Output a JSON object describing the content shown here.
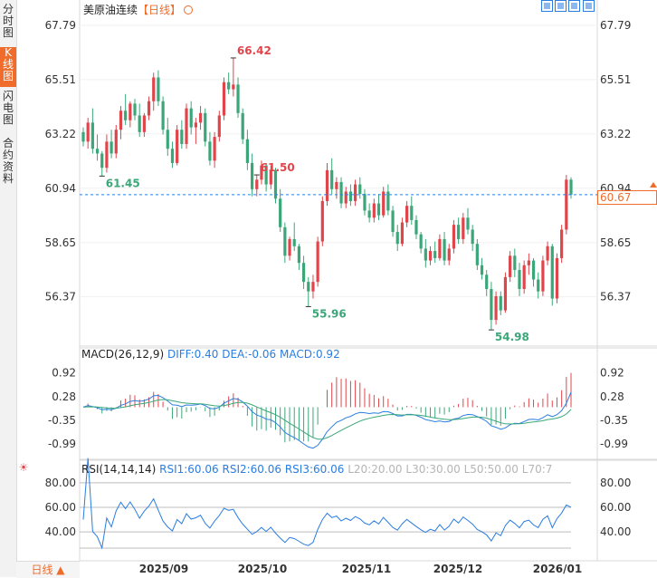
{
  "sidebar": {
    "tabs": [
      {
        "label": "分时图",
        "active": false
      },
      {
        "label": "K线图",
        "active": true
      },
      {
        "label": "闪电图",
        "active": false
      },
      {
        "label": "合约资料",
        "active": false
      }
    ]
  },
  "header": {
    "instrument": "美原油连续",
    "period_label": "【日线】"
  },
  "toolbar": {
    "buttons": [
      "zoom-in-icon",
      "zoom-out-icon",
      "move-left-icon",
      "move-right-icon"
    ]
  },
  "current_price": {
    "label": "60.67",
    "value": 60.67
  },
  "macd_legend": {
    "name": "MACD(26,12,9)",
    "dif": "DIFF:0.40",
    "dea": "DEA:-0.06",
    "macd": "MACD:0.92"
  },
  "rsi_legend": {
    "name": "RSI(14,14,14)",
    "rsi1": "RSI1:60.06",
    "rsi2": "RSI2:60.06",
    "rsi3": "RSI3:60.06",
    "l20": "L20:20.00",
    "l30": "L30:30.00",
    "l50": "L50:50.00",
    "l70": "L70:7"
  },
  "period_selector": {
    "label": "日线",
    "arrow": "▲"
  },
  "colors": {
    "up": "#e0454b",
    "down": "#3ba779",
    "dif": "#2a7de1",
    "dea": "#3ba779",
    "accent": "#ef6c2a"
  },
  "chart_data": {
    "type": "candlestick",
    "price_axis": {
      "ticks": [
        "67.79",
        "65.51",
        "63.22",
        "60.94",
        "58.65",
        "56.37"
      ],
      "ylim": [
        54.3,
        68.4
      ]
    },
    "x_axis": {
      "labels": [
        "2025/09",
        "2025/10",
        "2025/11",
        "2025/12",
        "2026/01"
      ]
    },
    "annotations": [
      {
        "text": "66.42",
        "value": 66.42,
        "type": "high"
      },
      {
        "text": "61.45",
        "value": 61.45,
        "type": "low"
      },
      {
        "text": "55.96",
        "value": 55.96,
        "type": "low"
      },
      {
        "text": "54.98",
        "value": 54.98,
        "type": "low"
      },
      {
        "text": "61.50",
        "value": 61.5,
        "type": "high"
      }
    ],
    "ohlc": [
      [
        63.3,
        63.5,
        62.7,
        62.9
      ],
      [
        62.9,
        63.9,
        62.6,
        63.7
      ],
      [
        63.7,
        64.3,
        62.4,
        62.6
      ],
      [
        62.6,
        63.2,
        62.1,
        62.4
      ],
      [
        62.4,
        62.5,
        61.45,
        61.8
      ],
      [
        61.8,
        63.2,
        61.6,
        62.9
      ],
      [
        62.9,
        63.4,
        62.2,
        62.4
      ],
      [
        62.4,
        63.6,
        62.2,
        63.4
      ],
      [
        63.4,
        64.4,
        63.0,
        64.2
      ],
      [
        64.2,
        64.9,
        63.6,
        63.8
      ],
      [
        63.8,
        64.6,
        63.5,
        64.5
      ],
      [
        64.5,
        64.7,
        63.8,
        64.0
      ],
      [
        64.0,
        64.5,
        63.1,
        63.3
      ],
      [
        63.3,
        64.1,
        63.1,
        64.0
      ],
      [
        64.0,
        64.8,
        63.8,
        64.6
      ],
      [
        64.6,
        65.8,
        64.2,
        65.6
      ],
      [
        65.6,
        65.9,
        64.4,
        64.6
      ],
      [
        64.6,
        64.8,
        63.2,
        63.4
      ],
      [
        63.4,
        63.9,
        62.3,
        62.6
      ],
      [
        62.6,
        62.9,
        61.8,
        62.0
      ],
      [
        62.0,
        63.6,
        61.9,
        63.4
      ],
      [
        63.4,
        63.8,
        62.6,
        62.8
      ],
      [
        62.8,
        64.5,
        62.6,
        64.3
      ],
      [
        64.3,
        64.6,
        63.2,
        63.5
      ],
      [
        63.5,
        63.9,
        62.8,
        63.7
      ],
      [
        63.7,
        64.4,
        63.4,
        64.1
      ],
      [
        64.1,
        64.3,
        62.7,
        62.9
      ],
      [
        62.9,
        63.3,
        61.9,
        62.1
      ],
      [
        62.1,
        63.3,
        61.8,
        63.1
      ],
      [
        63.1,
        64.2,
        62.9,
        64.0
      ],
      [
        64.0,
        65.6,
        63.8,
        65.4
      ],
      [
        65.4,
        65.8,
        64.9,
        65.1
      ],
      [
        65.1,
        66.42,
        64.8,
        65.3
      ],
      [
        65.3,
        65.6,
        63.9,
        64.1
      ],
      [
        64.1,
        64.3,
        62.8,
        63.0
      ],
      [
        63.0,
        63.4,
        61.7,
        62.0
      ],
      [
        62.0,
        62.4,
        60.6,
        60.9
      ],
      [
        60.9,
        61.5,
        60.6,
        61.3
      ],
      [
        61.3,
        62.1,
        61.1,
        61.9
      ],
      [
        61.9,
        62.0,
        60.8,
        61.1
      ],
      [
        61.1,
        61.9,
        60.9,
        61.7
      ],
      [
        61.7,
        61.8,
        60.3,
        60.5
      ],
      [
        60.5,
        60.9,
        59.1,
        59.3
      ],
      [
        59.3,
        59.5,
        57.8,
        58.1
      ],
      [
        58.1,
        58.9,
        57.9,
        58.8
      ],
      [
        58.8,
        59.5,
        58.3,
        58.5
      ],
      [
        58.5,
        58.6,
        57.5,
        57.8
      ],
      [
        57.8,
        58.1,
        56.7,
        57.0
      ],
      [
        57.0,
        57.2,
        55.96,
        56.6
      ],
      [
        56.6,
        57.3,
        56.3,
        57.0
      ],
      [
        57.0,
        58.9,
        56.8,
        58.7
      ],
      [
        58.7,
        60.6,
        58.5,
        60.4
      ],
      [
        60.4,
        62.0,
        60.2,
        61.7
      ],
      [
        61.7,
        62.2,
        60.7,
        60.9
      ],
      [
        60.9,
        61.4,
        60.5,
        61.2
      ],
      [
        61.2,
        61.4,
        60.1,
        60.3
      ],
      [
        60.3,
        61.0,
        60.1,
        60.8
      ],
      [
        60.8,
        61.1,
        60.2,
        60.4
      ],
      [
        60.4,
        61.3,
        60.2,
        61.1
      ],
      [
        61.1,
        61.4,
        60.5,
        60.7
      ],
      [
        60.7,
        60.9,
        59.8,
        60.0
      ],
      [
        60.0,
        60.3,
        59.5,
        59.7
      ],
      [
        59.7,
        60.5,
        59.5,
        60.3
      ],
      [
        60.3,
        60.7,
        59.6,
        59.8
      ],
      [
        59.8,
        61.0,
        59.7,
        60.8
      ],
      [
        60.8,
        61.1,
        59.8,
        60.0
      ],
      [
        60.0,
        60.2,
        58.9,
        59.1
      ],
      [
        59.1,
        59.4,
        58.3,
        58.6
      ],
      [
        58.6,
        59.7,
        58.5,
        59.5
      ],
      [
        59.5,
        60.4,
        59.3,
        60.2
      ],
      [
        60.2,
        60.6,
        59.4,
        59.6
      ],
      [
        59.6,
        59.8,
        58.8,
        59.0
      ],
      [
        59.0,
        59.1,
        58.2,
        58.4
      ],
      [
        58.4,
        58.8,
        57.6,
        57.9
      ],
      [
        57.9,
        58.5,
        57.7,
        58.3
      ],
      [
        58.3,
        58.7,
        57.8,
        58.0
      ],
      [
        58.0,
        59.0,
        57.9,
        58.8
      ],
      [
        58.8,
        59.1,
        57.7,
        57.9
      ],
      [
        57.9,
        58.6,
        57.7,
        58.4
      ],
      [
        58.4,
        59.6,
        58.2,
        59.4
      ],
      [
        59.4,
        59.7,
        58.6,
        58.8
      ],
      [
        58.8,
        59.9,
        58.6,
        59.7
      ],
      [
        59.7,
        60.1,
        59.0,
        59.2
      ],
      [
        59.2,
        59.4,
        58.3,
        58.6
      ],
      [
        58.6,
        58.8,
        57.5,
        57.7
      ],
      [
        57.7,
        58.0,
        57.1,
        57.3
      ],
      [
        57.3,
        57.5,
        56.4,
        56.7
      ],
      [
        56.7,
        57.0,
        54.98,
        55.4
      ],
      [
        55.4,
        56.6,
        55.2,
        56.4
      ],
      [
        56.4,
        56.6,
        55.6,
        55.8
      ],
      [
        55.8,
        57.4,
        55.7,
        57.2
      ],
      [
        57.2,
        58.3,
        57.0,
        58.1
      ],
      [
        58.1,
        58.4,
        57.2,
        57.5
      ],
      [
        57.5,
        57.8,
        56.4,
        56.7
      ],
      [
        56.7,
        57.9,
        56.5,
        57.7
      ],
      [
        57.7,
        58.2,
        57.3,
        57.9
      ],
      [
        57.9,
        58.0,
        56.8,
        57.1
      ],
      [
        57.1,
        57.4,
        56.3,
        56.6
      ],
      [
        56.6,
        58.1,
        56.4,
        57.9
      ],
      [
        57.9,
        58.7,
        57.7,
        58.5
      ],
      [
        58.5,
        58.6,
        56.0,
        56.3
      ],
      [
        56.3,
        58.2,
        56.1,
        58.0
      ],
      [
        58.0,
        59.4,
        57.8,
        59.2
      ],
      [
        59.2,
        61.5,
        59.0,
        61.3
      ],
      [
        61.3,
        61.4,
        60.5,
        60.67
      ]
    ],
    "macd_axis": {
      "ticks": [
        "0.92",
        "0.28",
        "-0.35",
        "-0.99"
      ],
      "ylim": [
        -1.35,
        1.25
      ]
    },
    "macd": {
      "last_dif": 0.4,
      "last_dea": -0.06,
      "last_macd": 0.92
    },
    "rsi_axis": {
      "ticks": [
        "80.00",
        "60.00",
        "40.00"
      ],
      "ylim": [
        18,
        88
      ]
    },
    "rsi": {
      "last": 60.06
    }
  }
}
